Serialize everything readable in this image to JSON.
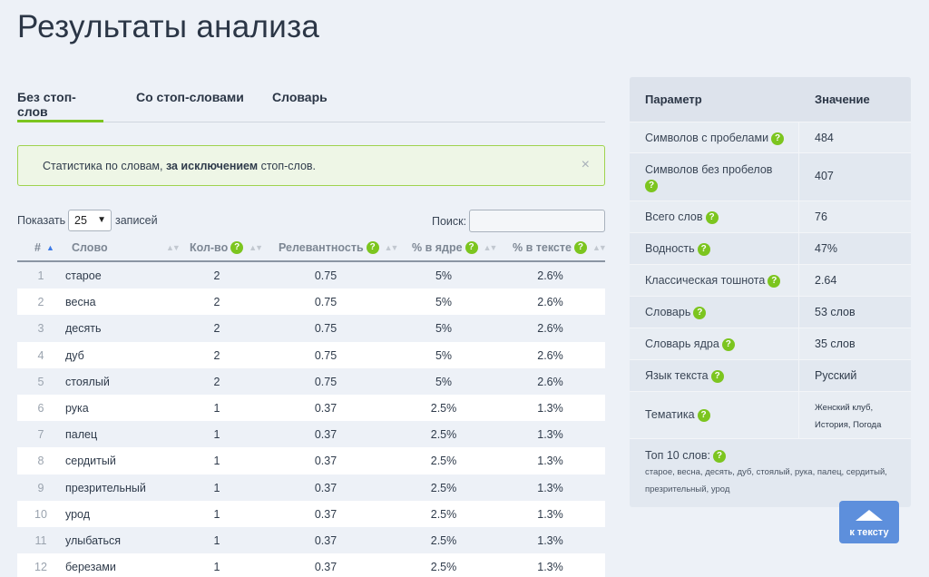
{
  "page": {
    "title": "Результаты анализа"
  },
  "tabs": [
    {
      "label": "Без стоп-слов",
      "active": true
    },
    {
      "label": "Со стоп-словами",
      "active": false
    },
    {
      "label": "Словарь",
      "active": false
    }
  ],
  "info": {
    "prefix": "Статистика по словам, ",
    "bold": "за исключением",
    "suffix": " стоп-слов.",
    "close": "×"
  },
  "controls": {
    "show_label": "Показать",
    "page_size": "25",
    "records_label": "записей",
    "search_label": "Поиск:",
    "search_value": ""
  },
  "table": {
    "headers": {
      "num": "#",
      "word": "Слово",
      "count": "Кол-во",
      "relevance": "Релевантность",
      "core": "% в ядре",
      "text": "% в тексте"
    },
    "rows": [
      {
        "num": "1",
        "word": "старое",
        "count": "2",
        "relevance": "0.75",
        "core": "5%",
        "text": "2.6%"
      },
      {
        "num": "2",
        "word": "весна",
        "count": "2",
        "relevance": "0.75",
        "core": "5%",
        "text": "2.6%"
      },
      {
        "num": "3",
        "word": "десять",
        "count": "2",
        "relevance": "0.75",
        "core": "5%",
        "text": "2.6%"
      },
      {
        "num": "4",
        "word": "дуб",
        "count": "2",
        "relevance": "0.75",
        "core": "5%",
        "text": "2.6%"
      },
      {
        "num": "5",
        "word": "стоялый",
        "count": "2",
        "relevance": "0.75",
        "core": "5%",
        "text": "2.6%"
      },
      {
        "num": "6",
        "word": "рука",
        "count": "1",
        "relevance": "0.37",
        "core": "2.5%",
        "text": "1.3%"
      },
      {
        "num": "7",
        "word": "палец",
        "count": "1",
        "relevance": "0.37",
        "core": "2.5%",
        "text": "1.3%"
      },
      {
        "num": "8",
        "word": "сердитый",
        "count": "1",
        "relevance": "0.37",
        "core": "2.5%",
        "text": "1.3%"
      },
      {
        "num": "9",
        "word": "презрительный",
        "count": "1",
        "relevance": "0.37",
        "core": "2.5%",
        "text": "1.3%"
      },
      {
        "num": "10",
        "word": "урод",
        "count": "1",
        "relevance": "0.37",
        "core": "2.5%",
        "text": "1.3%"
      },
      {
        "num": "11",
        "word": "улыбаться",
        "count": "1",
        "relevance": "0.37",
        "core": "2.5%",
        "text": "1.3%"
      },
      {
        "num": "12",
        "word": "березами",
        "count": "1",
        "relevance": "0.37",
        "core": "2.5%",
        "text": "1.3%"
      }
    ]
  },
  "panel": {
    "header": {
      "param": "Параметр",
      "value": "Значение"
    },
    "rows": [
      {
        "param": "Символов с пробелами",
        "value": "484"
      },
      {
        "param": "Символов без пробелов",
        "value": "407"
      },
      {
        "param": "Всего слов",
        "value": "76"
      },
      {
        "param": "Водность",
        "value": "47%"
      },
      {
        "param": "Классическая тошнота",
        "value": "2.64"
      },
      {
        "param": "Словарь",
        "value": "53 слов"
      },
      {
        "param": "Словарь ядра",
        "value": "35 слов"
      },
      {
        "param": "Язык текста",
        "value": "Русский"
      },
      {
        "param": "Тематика",
        "value": "Женский клуб, История, Погода"
      }
    ],
    "top10_label": "Топ 10 слов:",
    "top10_list": "старое, весна, десять, дуб, стоялый, рука, палец, сердитый, презрительный, урод"
  },
  "help_glyph": "?",
  "to_text_label": "к тексту",
  "colors": {
    "accent_green": "#7cc51f",
    "button_blue": "#5d8fdc"
  }
}
